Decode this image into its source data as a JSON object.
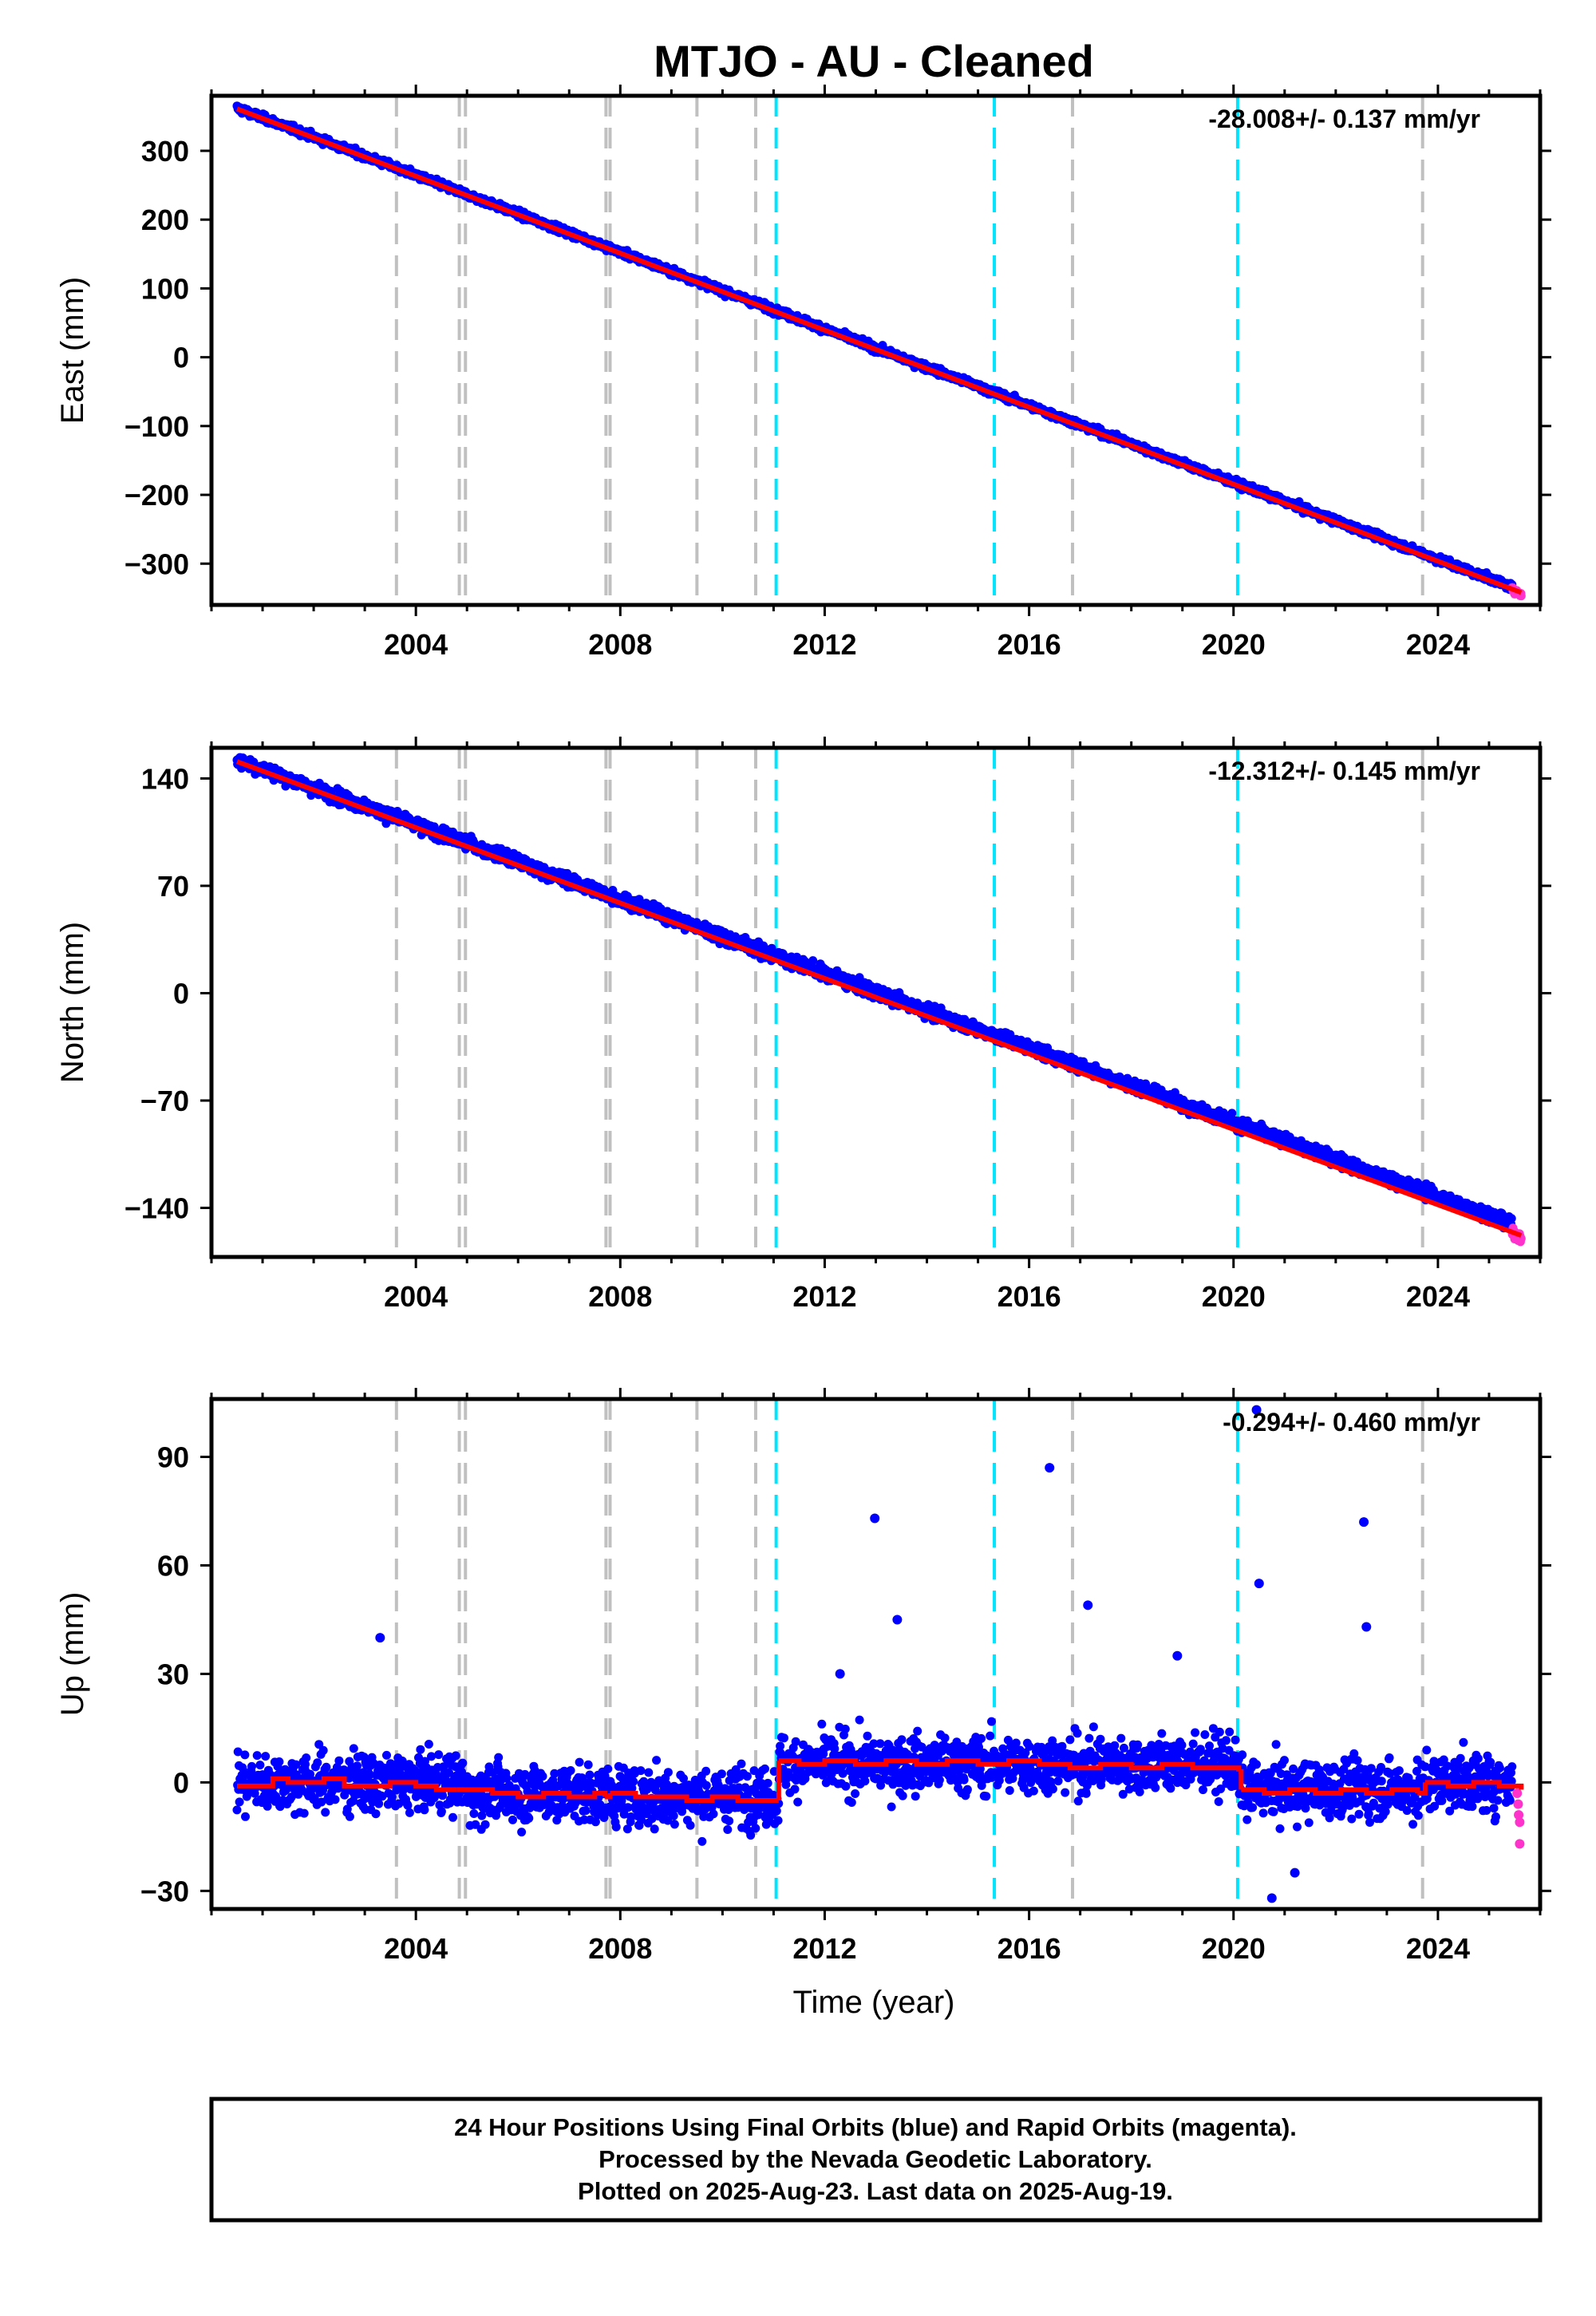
{
  "figure": {
    "title": "MTJO  - AU - Cleaned",
    "xlabel": "Time (year)",
    "caption": [
      "24 Hour Positions Using Final Orbits (blue) and Rapid Orbits (magenta).",
      "Processed by the Nevada Geodetic Laboratory.",
      "Plotted on 2025-Aug-23. Last data on 2025-Aug-19."
    ]
  },
  "colors": {
    "final_orbits": "#0000ff",
    "rapid_orbits": "#ff33cc",
    "model_fit": "#ff0000",
    "equipment_change_line": "#c0c0c0",
    "earthquake_line": "#00e5ff"
  },
  "chart_data": [
    {
      "type": "scatter",
      "ylabel": "East (mm)",
      "rate_label": "-28.008+/- 0.137 mm/yr",
      "xlim": [
        2000.0,
        2026.0
      ],
      "ylim": [
        -360,
        380
      ],
      "xticks": [
        2004,
        2008,
        2012,
        2016,
        2020,
        2024
      ],
      "yticks": [
        -300,
        -200,
        -100,
        0,
        100,
        200,
        300
      ],
      "ytick_labels": [
        "−300",
        "−200",
        "−100",
        "0",
        "100",
        "200",
        "300"
      ],
      "series": [
        {
          "name": "Final Orbits",
          "x_range": [
            2000.5,
            2025.45
          ],
          "trend": {
            "x": [
              2000.5,
              2025.45
            ],
            "y": [
              362,
              -334
            ]
          },
          "scatter": 3.5
        },
        {
          "name": "Rapid Orbits",
          "x_range": [
            2025.45,
            2025.63
          ],
          "trend": {
            "x": [
              2025.45,
              2025.63
            ],
            "y": [
              -337,
              -345
            ]
          },
          "scatter": 2.5
        },
        {
          "name": "Model fit",
          "line": {
            "x": [
              2000.5,
              2025.63
            ],
            "y": [
              361,
              -342
            ]
          }
        }
      ]
    },
    {
      "type": "scatter",
      "ylabel": "North (mm)",
      "rate_label": "-12.312+/- 0.145 mm/yr",
      "xlim": [
        2000.0,
        2026.0
      ],
      "ylim": [
        -172,
        160
      ],
      "xticks": [
        2004,
        2008,
        2012,
        2016,
        2020,
        2024
      ],
      "yticks": [
        -140,
        -70,
        0,
        70,
        140
      ],
      "ytick_labels": [
        "−140",
        "−70",
        "0",
        "70",
        "140"
      ],
      "series": [
        {
          "name": "Final Orbits",
          "x_range": [
            2000.5,
            2025.45
          ],
          "trend": {
            "x": [
              2000.5,
              2025.45
            ],
            "y": [
              152,
              -150
            ]
          },
          "scatter": 3.0
        },
        {
          "name": "Rapid Orbits",
          "x_range": [
            2025.45,
            2025.63
          ],
          "trend": {
            "x": [
              2025.45,
              2025.63
            ],
            "y": [
              -156,
              -160
            ]
          },
          "scatter": 2.0
        },
        {
          "name": "Model fit",
          "line": {
            "x": [
              2000.5,
              2025.63
            ],
            "y": [
              151,
              -158
            ]
          }
        }
      ]
    },
    {
      "type": "scatter",
      "ylabel": "Up (mm)",
      "rate_label": "-0.294+/- 0.460 mm/yr",
      "xlim": [
        2000.0,
        2026.0
      ],
      "ylim": [
        -35,
        106
      ],
      "xticks": [
        2004,
        2008,
        2012,
        2016,
        2020,
        2024
      ],
      "yticks": [
        -30,
        0,
        30,
        60,
        90
      ],
      "ytick_labels": [
        "−30",
        "0",
        "30",
        "60",
        "90"
      ],
      "series": [
        {
          "name": "Final Orbits",
          "x_range": [
            2000.5,
            2025.45
          ],
          "trend": {
            "x": [
              2000.5,
              2025.45
            ],
            "y": [
              0,
              0
            ]
          },
          "scatter": 5.5
        },
        {
          "name": "Rapid Orbits",
          "points": {
            "x": [
              2025.55,
              2025.57,
              2025.58,
              2025.6,
              2025.6
            ],
            "y": [
              -3,
              -6,
              -9,
              -11,
              -17
            ]
          }
        },
        {
          "name": "Model fit",
          "steps": [
            {
              "x": [
                2000.5,
                2001.2,
                2001.5,
                2002.2,
                2002.6,
                2003.2,
                2003.5,
                2004.0,
                2004.4,
                2004.8
              ],
              "y": [
                -1,
                1,
                0,
                1,
                -1,
                -1,
                0,
                -1,
                -2,
                -2
              ]
            },
            {
              "x": [
                2004.95,
                2005.5,
                2006.0,
                2006.5,
                2007.0,
                2007.5,
                2007.7
              ],
              "y": [
                -2,
                -3,
                -4,
                -3,
                -4,
                -3,
                -4
              ]
            },
            {
              "x": [
                2007.8,
                2008.3,
                2008.8,
                2009.3,
                2009.8,
                2010.3,
                2010.8,
                2011.1
              ],
              "y": [
                -3,
                -4,
                -4,
                -5,
                -4,
                -5,
                -5,
                -5
              ]
            },
            {
              "x": [
                2011.1,
                2011.5,
                2012.0,
                2012.6,
                2013.2,
                2013.8,
                2014.4,
                2015.0,
                2015.6,
                2016.2,
                2016.8,
                2017.4,
                2018.0,
                2018.6,
                2019.2,
                2019.8,
                2020.1
              ],
              "y": [
                6,
                5,
                6,
                5,
                6,
                5,
                6,
                5,
                6,
                5,
                4,
                5,
                4,
                5,
                4,
                4,
                3
              ]
            },
            {
              "x": [
                2020.15,
                2020.6,
                2021.1,
                2021.6,
                2022.1,
                2022.6,
                2023.1,
                2023.6
              ],
              "y": [
                -2,
                -3,
                -2,
                -3,
                -2,
                -3,
                -2,
                -3
              ]
            },
            {
              "x": [
                2023.75,
                2024.2,
                2024.7,
                2025.2,
                2025.63
              ],
              "y": [
                0,
                -1,
                0,
                -1,
                -2
              ]
            }
          ]
        },
        {
          "name": "Outliers",
          "points": {
            "x": [
              2003.3,
              2012.98,
              2013.42,
              2016.4,
              2017.15,
              2020.45,
              2020.5,
              2020.75,
              2021.2,
              2022.55,
              2022.6,
              2012.3,
              2018.9
            ],
            "y": [
              40,
              73,
              45,
              87,
              49,
              103,
              55,
              -32,
              -25,
              72,
              43,
              30,
              35
            ]
          }
        }
      ]
    }
  ],
  "event_lines": {
    "equipment_change": [
      2003.62,
      2004.85,
      2004.97,
      2007.72,
      2007.8,
      2009.5,
      2010.65,
      2016.85,
      2023.7
    ],
    "earthquake": [
      2011.05,
      2015.32,
      2020.08
    ]
  }
}
